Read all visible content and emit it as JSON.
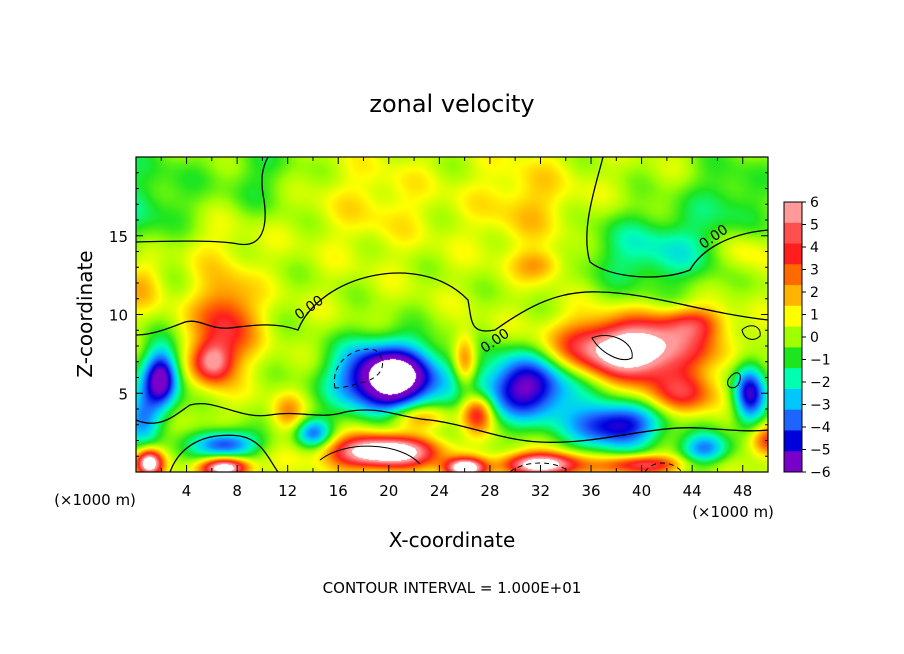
{
  "chart_data": {
    "type": "heatmap",
    "title": "zonal velocity",
    "xlabel": "X-coordinate",
    "ylabel": "Z-coordinate",
    "x_units_left": "(×1000 m)",
    "x_units_right": "(×1000 m)",
    "footer": "CONTOUR INTERVAL = 1.000E+01",
    "xlim": [
      0,
      50
    ],
    "ylim": [
      0,
      20
    ],
    "x_ticks": [
      4,
      8,
      12,
      16,
      20,
      24,
      28,
      32,
      36,
      40,
      44,
      48
    ],
    "y_ticks": [
      5,
      10,
      15
    ],
    "contour_labels": [
      {
        "text": "0.00",
        "x": 13.9,
        "y": 10.2
      },
      {
        "text": "0.00",
        "x": 28.6,
        "y": 8.1
      },
      {
        "text": "0.00",
        "x": 45.9,
        "y": 14.7
      }
    ],
    "colorbar": {
      "ticks": [
        "6",
        "5",
        "4",
        "3",
        "2",
        "1",
        "0",
        "−1",
        "−2",
        "−3",
        "−4",
        "−5",
        "−6"
      ],
      "colors": [
        "#ff9a9a",
        "#ff5050",
        "#ff1e1e",
        "#ff6a00",
        "#ffb400",
        "#ffff00",
        "#a0ff00",
        "#1ee61e",
        "#00ffb0",
        "#00c8ff",
        "#1e64ff",
        "#0000dc",
        "#7800c8"
      ]
    },
    "field": {
      "background": 0.3,
      "features": [
        {
          "x": 0,
          "y": 16.5,
          "sx": 5.5,
          "sy": 4.5,
          "a": -1.8
        },
        {
          "x": 5,
          "y": 14.5,
          "sx": 4,
          "sy": 2,
          "a": 1.0
        },
        {
          "x": 10,
          "y": 19,
          "sx": 3,
          "sy": 2.5,
          "a": -1.2
        },
        {
          "x": 19,
          "y": 17,
          "sx": 5,
          "sy": 3,
          "a": 0.9
        },
        {
          "x": 31,
          "y": 17,
          "sx": 4,
          "sy": 3,
          "a": 1.4
        },
        {
          "x": 41,
          "y": 14,
          "sx": 5.5,
          "sy": 2.5,
          "a": -2.5
        },
        {
          "x": 47,
          "y": 17.5,
          "sx": 3.5,
          "sy": 3,
          "a": -1.5
        },
        {
          "x": 32,
          "y": 13.2,
          "sx": 2,
          "sy": 1,
          "a": 2.0
        },
        {
          "x": 0.5,
          "y": 12,
          "sx": 2,
          "sy": 2,
          "a": 2.0
        },
        {
          "x": 48,
          "y": 14,
          "sx": 2,
          "sy": 1.5,
          "a": 1.5
        },
        {
          "x": 7,
          "y": 9.5,
          "sx": 2.4,
          "sy": 2.8,
          "a": 4.0
        },
        {
          "x": 6,
          "y": 7,
          "sx": 1.5,
          "sy": 1.3,
          "a": 5.0
        },
        {
          "x": 2,
          "y": 6,
          "sx": 1.4,
          "sy": 2.0,
          "a": -6.5
        },
        {
          "x": 0.5,
          "y": 3.5,
          "sx": 1.5,
          "sy": 2.0,
          "a": -3.5
        },
        {
          "x": 20,
          "y": 6,
          "sx": 4,
          "sy": 2.2,
          "a": -9.0
        },
        {
          "x": 26,
          "y": 7,
          "sx": 0.9,
          "sy": 1.8,
          "a": 3.5
        },
        {
          "x": 27,
          "y": 3.8,
          "sx": 1.2,
          "sy": 1.2,
          "a": 4.5
        },
        {
          "x": 31,
          "y": 5.5,
          "sx": 4,
          "sy": 2.2,
          "a": -6.5
        },
        {
          "x": 38,
          "y": 3,
          "sx": 3.5,
          "sy": 1.5,
          "a": -6.0
        },
        {
          "x": 39,
          "y": 7.8,
          "sx": 5.5,
          "sy": 1.8,
          "a": 8.5
        },
        {
          "x": 43,
          "y": 5,
          "sx": 3,
          "sy": 1.3,
          "a": 3.5
        },
        {
          "x": 44,
          "y": 9.5,
          "sx": 2.5,
          "sy": 1,
          "a": 3.0
        },
        {
          "x": 48.5,
          "y": 5,
          "sx": 1.3,
          "sy": 2.0,
          "a": -6.0
        },
        {
          "x": 50,
          "y": 2,
          "sx": 1.5,
          "sy": 1,
          "a": 4.0
        },
        {
          "x": 1,
          "y": 0.6,
          "sx": 1,
          "sy": 0.8,
          "a": 8.0
        },
        {
          "x": 7,
          "y": 1.8,
          "sx": 2.5,
          "sy": 0.9,
          "a": -5.0
        },
        {
          "x": 7,
          "y": 0.3,
          "sx": 1.8,
          "sy": 0.6,
          "a": 8.0
        },
        {
          "x": 12,
          "y": 3.8,
          "sx": 1.2,
          "sy": 1.2,
          "a": 2.0
        },
        {
          "x": 19.5,
          "y": 1.3,
          "sx": 4,
          "sy": 1.0,
          "a": 9.0
        },
        {
          "x": 22,
          "y": 3.5,
          "sx": 2.5,
          "sy": 0.8,
          "a": 3.0
        },
        {
          "x": 26,
          "y": 0.3,
          "sx": 1.5,
          "sy": 0.6,
          "a": 8.0
        },
        {
          "x": 32,
          "y": 0.5,
          "sx": 3,
          "sy": 0.7,
          "a": 8.0
        },
        {
          "x": 40,
          "y": 0.5,
          "sx": 3,
          "sy": 0.6,
          "a": 5.0
        },
        {
          "x": 45,
          "y": 1.5,
          "sx": 2,
          "sy": 1,
          "a": -4.0
        },
        {
          "x": 14,
          "y": 2.5,
          "sx": 1.5,
          "sy": 1,
          "a": -4.0
        }
      ]
    }
  }
}
